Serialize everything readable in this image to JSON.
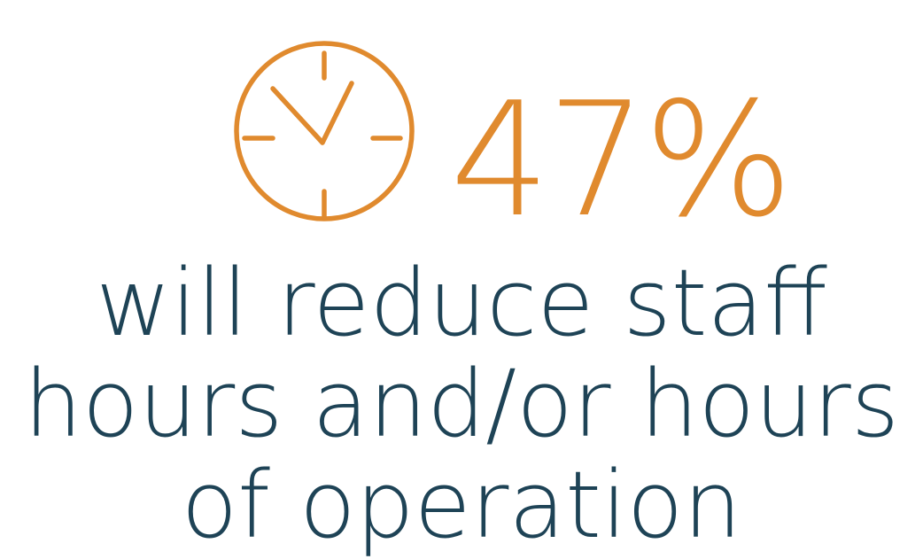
{
  "colors": {
    "accent": "#E08A2E",
    "text": "#1E4356",
    "background": "#FFFFFF"
  },
  "stat": {
    "value": "47%",
    "icon": "clock-icon"
  },
  "caption": {
    "lines": [
      "will reduce staff",
      "hours and/or hours",
      "of operation"
    ]
  }
}
